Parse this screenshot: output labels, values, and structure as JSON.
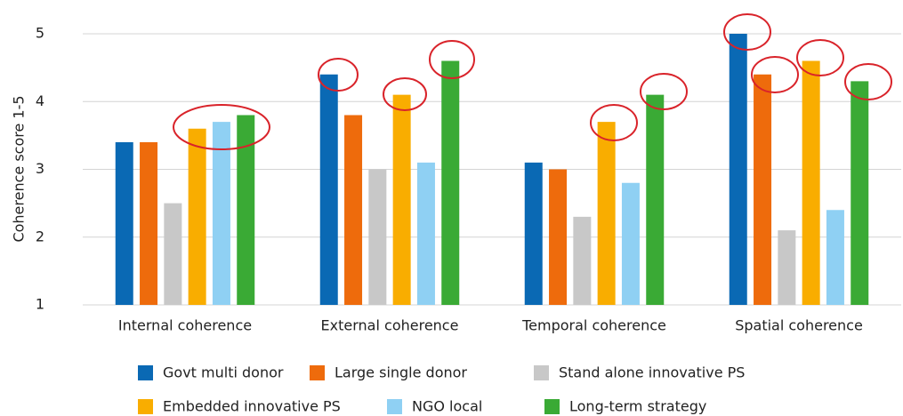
{
  "chart_data": {
    "type": "bar",
    "y_label": "Coherence score 1-5",
    "categories": [
      "Internal coherence",
      "External coherence",
      "Temporal coherence",
      "Spatial coherence"
    ],
    "series": [
      {
        "name": "Govt multi donor",
        "color": "#0a69b4",
        "values": [
          3.4,
          4.4,
          3.1,
          5.0
        ]
      },
      {
        "name": "Large single donor",
        "color": "#ee6b0c",
        "values": [
          3.4,
          3.8,
          3.0,
          4.4
        ]
      },
      {
        "name": "Stand alone innovative PS",
        "color": "#c8c8c8",
        "values": [
          2.5,
          3.0,
          2.3,
          2.1
        ]
      },
      {
        "name": "Embedded innovative PS",
        "color": "#f9ad00",
        "values": [
          3.6,
          4.1,
          3.7,
          4.6
        ]
      },
      {
        "name": "NGO local",
        "color": "#8fd0f3",
        "values": [
          3.7,
          3.1,
          2.8,
          2.4
        ]
      },
      {
        "name": "Long-term strategy",
        "color": "#3aaa35",
        "values": [
          3.8,
          4.6,
          4.1,
          4.3
        ]
      }
    ],
    "ylim": [
      1,
      5
    ],
    "yticks": [
      1,
      2,
      3,
      4,
      5
    ],
    "grid": true,
    "legend": "bottom"
  }
}
